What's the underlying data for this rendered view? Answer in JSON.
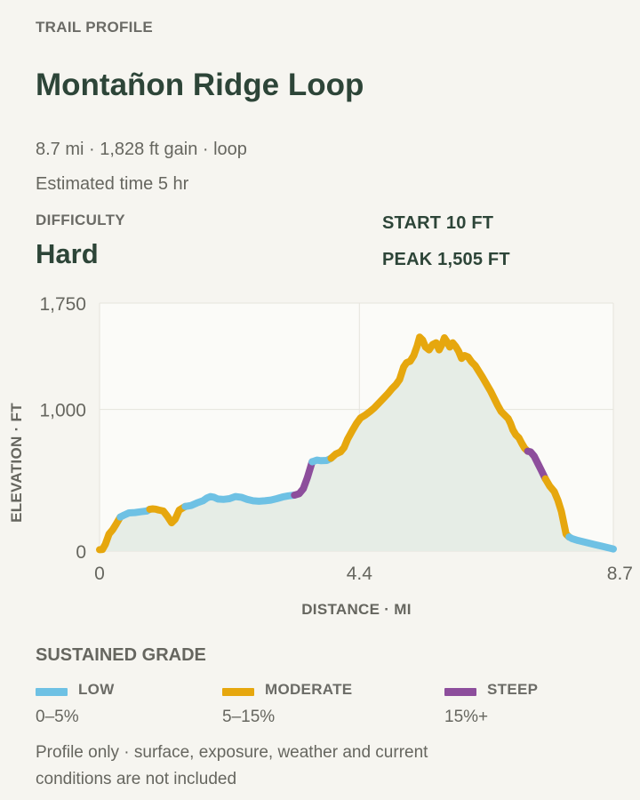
{
  "header": {
    "eyebrow": "TRAIL PROFILE",
    "title": "Montañon Ridge Loop",
    "summary": "8.7 mi · 1,828 ft gain · loop",
    "estimate": "Estimated time 5 hr"
  },
  "difficulty": {
    "label": "DIFFICULTY",
    "value": "Hard"
  },
  "stats": {
    "start": "START 10 FT",
    "peak": "PEAK 1,505 FT"
  },
  "chart_data": {
    "type": "area",
    "xlabel": "DISTANCE · MI",
    "ylabel": "ELEVATION · FT",
    "xlim": [
      0,
      8.7
    ],
    "ylim": [
      0,
      1750
    ],
    "x_ticks": [
      "0",
      "4.4",
      "8.7"
    ],
    "x_tick_values": [
      0,
      4.4,
      8.7
    ],
    "y_ticks": [
      "0",
      "1,000",
      "1,750"
    ],
    "y_tick_values": [
      0,
      1000,
      1750
    ],
    "grid": true,
    "fill_color": "#e6ede6",
    "points": [
      [
        0.0,
        10
      ],
      [
        0.05,
        12
      ],
      [
        0.1,
        50
      ],
      [
        0.16,
        120
      ],
      [
        0.22,
        150
      ],
      [
        0.28,
        190
      ],
      [
        0.35,
        240
      ],
      [
        0.42,
        255
      ],
      [
        0.5,
        270
      ],
      [
        0.6,
        272
      ],
      [
        0.7,
        278
      ],
      [
        0.8,
        283
      ],
      [
        0.85,
        295
      ],
      [
        0.9,
        298
      ],
      [
        0.95,
        296
      ],
      [
        1.0,
        290
      ],
      [
        1.08,
        283
      ],
      [
        1.15,
        245
      ],
      [
        1.22,
        200
      ],
      [
        1.28,
        225
      ],
      [
        1.35,
        290
      ],
      [
        1.45,
        315
      ],
      [
        1.55,
        322
      ],
      [
        1.65,
        340
      ],
      [
        1.75,
        355
      ],
      [
        1.82,
        375
      ],
      [
        1.88,
        385
      ],
      [
        1.94,
        380
      ],
      [
        2.0,
        368
      ],
      [
        2.1,
        365
      ],
      [
        2.2,
        370
      ],
      [
        2.3,
        385
      ],
      [
        2.4,
        380
      ],
      [
        2.5,
        365
      ],
      [
        2.6,
        355
      ],
      [
        2.7,
        352
      ],
      [
        2.8,
        355
      ],
      [
        2.9,
        360
      ],
      [
        3.0,
        370
      ],
      [
        3.1,
        382
      ],
      [
        3.2,
        390
      ],
      [
        3.3,
        395
      ],
      [
        3.38,
        405
      ],
      [
        3.45,
        440
      ],
      [
        3.52,
        520
      ],
      [
        3.6,
        630
      ],
      [
        3.68,
        642
      ],
      [
        3.75,
        638
      ],
      [
        3.85,
        640
      ],
      [
        3.92,
        655
      ],
      [
        4.0,
        685
      ],
      [
        4.08,
        700
      ],
      [
        4.14,
        730
      ],
      [
        4.2,
        790
      ],
      [
        4.28,
        850
      ],
      [
        4.35,
        900
      ],
      [
        4.42,
        940
      ],
      [
        4.5,
        960
      ],
      [
        4.58,
        985
      ],
      [
        4.65,
        1010
      ],
      [
        4.72,
        1040
      ],
      [
        4.8,
        1075
      ],
      [
        4.88,
        1110
      ],
      [
        4.95,
        1145
      ],
      [
        5.02,
        1175
      ],
      [
        5.08,
        1210
      ],
      [
        5.15,
        1300
      ],
      [
        5.2,
        1330
      ],
      [
        5.26,
        1340
      ],
      [
        5.32,
        1380
      ],
      [
        5.38,
        1450
      ],
      [
        5.42,
        1510
      ],
      [
        5.47,
        1490
      ],
      [
        5.52,
        1440
      ],
      [
        5.58,
        1420
      ],
      [
        5.64,
        1458
      ],
      [
        5.7,
        1470
      ],
      [
        5.75,
        1420
      ],
      [
        5.8,
        1460
      ],
      [
        5.84,
        1505
      ],
      [
        5.88,
        1480
      ],
      [
        5.93,
        1440
      ],
      [
        5.98,
        1470
      ],
      [
        6.03,
        1445
      ],
      [
        6.08,
        1410
      ],
      [
        6.13,
        1360
      ],
      [
        6.18,
        1380
      ],
      [
        6.24,
        1370
      ],
      [
        6.3,
        1335
      ],
      [
        6.36,
        1310
      ],
      [
        6.42,
        1270
      ],
      [
        6.48,
        1230
      ],
      [
        6.55,
        1180
      ],
      [
        6.62,
        1130
      ],
      [
        6.68,
        1080
      ],
      [
        6.74,
        1030
      ],
      [
        6.8,
        985
      ],
      [
        6.86,
        960
      ],
      [
        6.92,
        935
      ],
      [
        6.96,
        900
      ],
      [
        7.0,
        855
      ],
      [
        7.05,
        820
      ],
      [
        7.1,
        800
      ],
      [
        7.15,
        760
      ],
      [
        7.2,
        725
      ],
      [
        7.25,
        705
      ],
      [
        7.3,
        700
      ],
      [
        7.36,
        670
      ],
      [
        7.42,
        620
      ],
      [
        7.48,
        570
      ],
      [
        7.55,
        510
      ],
      [
        7.62,
        460
      ],
      [
        7.7,
        420
      ],
      [
        7.76,
        360
      ],
      [
        7.82,
        280
      ],
      [
        7.86,
        200
      ],
      [
        7.9,
        120
      ],
      [
        7.95,
        100
      ],
      [
        8.0,
        88
      ],
      [
        8.1,
        75
      ],
      [
        8.2,
        65
      ],
      [
        8.3,
        55
      ],
      [
        8.4,
        45
      ],
      [
        8.5,
        35
      ],
      [
        8.6,
        25
      ],
      [
        8.7,
        15
      ]
    ],
    "segments": [
      {
        "from": 0.0,
        "to": 0.35,
        "grade": "moderate"
      },
      {
        "from": 0.35,
        "to": 0.85,
        "grade": "low"
      },
      {
        "from": 0.85,
        "to": 1.45,
        "grade": "moderate"
      },
      {
        "from": 1.45,
        "to": 3.3,
        "grade": "low"
      },
      {
        "from": 3.3,
        "to": 3.6,
        "grade": "steep"
      },
      {
        "from": 3.6,
        "to": 3.92,
        "grade": "low"
      },
      {
        "from": 3.92,
        "to": 7.25,
        "grade": "moderate"
      },
      {
        "from": 7.25,
        "to": 7.55,
        "grade": "steep"
      },
      {
        "from": 7.55,
        "to": 7.95,
        "grade": "moderate"
      },
      {
        "from": 7.95,
        "to": 8.7,
        "grade": "low"
      }
    ]
  },
  "legend": {
    "title": "SUSTAINED GRADE",
    "items": [
      {
        "key": "low",
        "name": "LOW",
        "range": "0–5%",
        "color": "#6ec1e4"
      },
      {
        "key": "moderate",
        "name": "MODERATE",
        "range": "5–15%",
        "color": "#e6a70e"
      },
      {
        "key": "steep",
        "name": "STEEP",
        "range": "15%+",
        "color": "#8d4e9c"
      }
    ]
  },
  "footnote": "Profile only · surface, exposure, weather and current conditions are not included"
}
